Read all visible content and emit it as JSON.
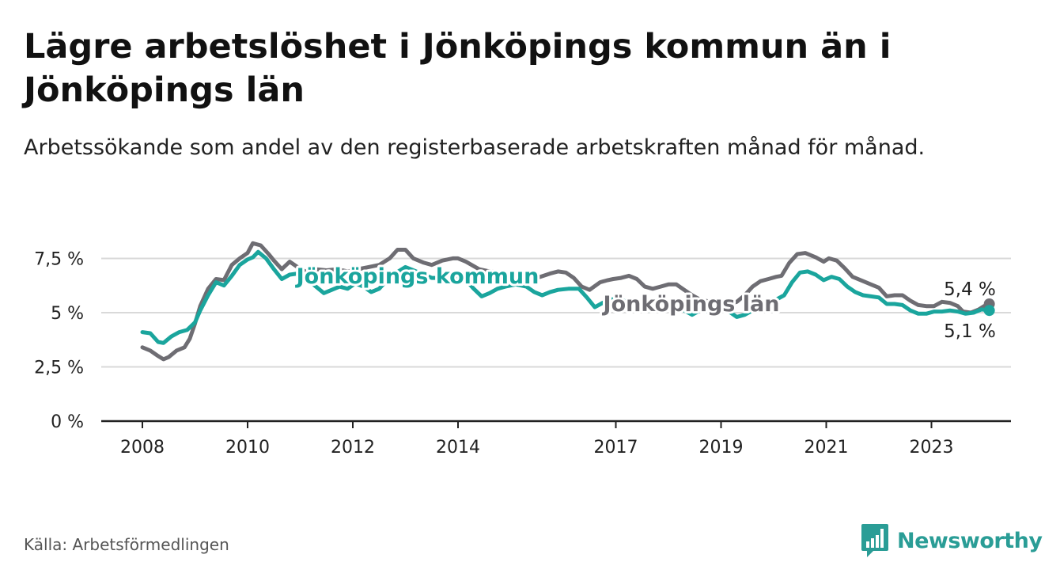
{
  "title": "Lägre arbetslöshet i Jönköpings kommun än i Jönköpings län",
  "subtitle": "Arbetssökande som andel av den registerbaserade arbetskraften månad för månad.",
  "source": "Källa: Arbetsförmedlingen",
  "brand": "Newsworthy",
  "colors": {
    "kommun": "#1aa59d",
    "lan": "#6e6d73",
    "grid": "#d9d9d9",
    "axis": "#222222",
    "text": "#222222"
  },
  "chart_data": {
    "type": "line",
    "title": "Lägre arbetslöshet i Jönköpings kommun än i Jönköpings län",
    "xlabel": "",
    "ylabel": "",
    "xlim": [
      2008,
      2024.5
    ],
    "ylim": [
      0,
      8.1
    ],
    "y_ticks": [
      {
        "value": 0,
        "label": "0 %"
      },
      {
        "value": 2.5,
        "label": "2,5 %"
      },
      {
        "value": 5,
        "label": "5 %"
      },
      {
        "value": 7.5,
        "label": "7,5 %"
      }
    ],
    "x_ticks": [
      {
        "value": 2008,
        "label": "2008"
      },
      {
        "value": 2010,
        "label": "2010"
      },
      {
        "value": 2012,
        "label": "2012"
      },
      {
        "value": 2014,
        "label": "2014"
      },
      {
        "value": 2017,
        "label": "2017"
      },
      {
        "value": 2019,
        "label": "2019"
      },
      {
        "value": 2021,
        "label": "2021"
      },
      {
        "value": 2023,
        "label": "2023"
      }
    ],
    "grid": true,
    "series": [
      {
        "name": "Jönköpings län",
        "label": "Jönköpings län",
        "end_label": "5,4 %",
        "color_key": "lan",
        "points": [
          [
            2008.0,
            3.4
          ],
          [
            2008.15,
            3.25
          ],
          [
            2008.3,
            3.0
          ],
          [
            2008.4,
            2.85
          ],
          [
            2008.5,
            2.95
          ],
          [
            2008.65,
            3.25
          ],
          [
            2008.8,
            3.4
          ],
          [
            2008.9,
            3.8
          ],
          [
            2009.0,
            4.5
          ],
          [
            2009.1,
            5.3
          ],
          [
            2009.25,
            6.1
          ],
          [
            2009.4,
            6.55
          ],
          [
            2009.55,
            6.5
          ],
          [
            2009.7,
            7.2
          ],
          [
            2009.85,
            7.5
          ],
          [
            2010.0,
            7.75
          ],
          [
            2010.1,
            8.2
          ],
          [
            2010.25,
            8.1
          ],
          [
            2010.4,
            7.7
          ],
          [
            2010.5,
            7.4
          ],
          [
            2010.65,
            7.0
          ],
          [
            2010.8,
            7.35
          ],
          [
            2010.95,
            7.1
          ],
          [
            2011.1,
            6.9
          ],
          [
            2011.3,
            7.0
          ],
          [
            2011.5,
            6.95
          ],
          [
            2011.7,
            7.0
          ],
          [
            2011.9,
            6.9
          ],
          [
            2012.1,
            7.0
          ],
          [
            2012.3,
            7.1
          ],
          [
            2012.5,
            7.2
          ],
          [
            2012.7,
            7.5
          ],
          [
            2012.85,
            7.9
          ],
          [
            2013.0,
            7.9
          ],
          [
            2013.15,
            7.5
          ],
          [
            2013.35,
            7.3
          ],
          [
            2013.5,
            7.2
          ],
          [
            2013.7,
            7.4
          ],
          [
            2013.9,
            7.5
          ],
          [
            2014.0,
            7.5
          ],
          [
            2014.15,
            7.35
          ],
          [
            2014.4,
            7.0
          ],
          [
            2014.6,
            6.9
          ],
          [
            2014.9,
            6.8
          ],
          [
            2015.2,
            6.7
          ],
          [
            2015.5,
            6.6
          ],
          [
            2015.75,
            6.8
          ],
          [
            2015.9,
            6.9
          ],
          [
            2016.05,
            6.85
          ],
          [
            2016.2,
            6.6
          ],
          [
            2016.35,
            6.2
          ],
          [
            2016.5,
            6.05
          ],
          [
            2016.7,
            6.4
          ],
          [
            2016.85,
            6.5
          ],
          [
            2016.95,
            6.55
          ],
          [
            2017.1,
            6.6
          ],
          [
            2017.25,
            6.7
          ],
          [
            2017.4,
            6.55
          ],
          [
            2017.55,
            6.2
          ],
          [
            2017.7,
            6.1
          ],
          [
            2017.85,
            6.2
          ],
          [
            2018.0,
            6.3
          ],
          [
            2018.15,
            6.3
          ],
          [
            2018.3,
            6.05
          ],
          [
            2018.45,
            5.8
          ],
          [
            2018.6,
            5.6
          ],
          [
            2018.8,
            5.5
          ],
          [
            2019.0,
            5.45
          ],
          [
            2019.15,
            5.4
          ],
          [
            2019.3,
            5.5
          ],
          [
            2019.45,
            5.8
          ],
          [
            2019.6,
            6.2
          ],
          [
            2019.75,
            6.45
          ],
          [
            2019.9,
            6.55
          ],
          [
            2020.05,
            6.65
          ],
          [
            2020.15,
            6.7
          ],
          [
            2020.3,
            7.3
          ],
          [
            2020.45,
            7.7
          ],
          [
            2020.6,
            7.75
          ],
          [
            2020.8,
            7.55
          ],
          [
            2020.95,
            7.35
          ],
          [
            2021.05,
            7.5
          ],
          [
            2021.2,
            7.4
          ],
          [
            2021.35,
            7.05
          ],
          [
            2021.5,
            6.65
          ],
          [
            2021.7,
            6.45
          ],
          [
            2021.85,
            6.3
          ],
          [
            2022.0,
            6.15
          ],
          [
            2022.15,
            5.75
          ],
          [
            2022.3,
            5.8
          ],
          [
            2022.45,
            5.8
          ],
          [
            2022.6,
            5.55
          ],
          [
            2022.75,
            5.35
          ],
          [
            2022.9,
            5.3
          ],
          [
            2023.05,
            5.3
          ],
          [
            2023.2,
            5.5
          ],
          [
            2023.35,
            5.45
          ],
          [
            2023.5,
            5.3
          ],
          [
            2023.6,
            5.05
          ],
          [
            2023.75,
            5.0
          ],
          [
            2023.9,
            5.15
          ],
          [
            2024.0,
            5.3
          ],
          [
            2024.1,
            5.4
          ]
        ]
      },
      {
        "name": "Jönköpings kommun",
        "label": "Jönköpings kommun",
        "end_label": "5,1 %",
        "color_key": "kommun",
        "points": [
          [
            2008.0,
            4.1
          ],
          [
            2008.15,
            4.05
          ],
          [
            2008.3,
            3.65
          ],
          [
            2008.4,
            3.6
          ],
          [
            2008.55,
            3.9
          ],
          [
            2008.7,
            4.1
          ],
          [
            2008.85,
            4.2
          ],
          [
            2009.0,
            4.55
          ],
          [
            2009.1,
            5.1
          ],
          [
            2009.25,
            5.8
          ],
          [
            2009.4,
            6.4
          ],
          [
            2009.55,
            6.25
          ],
          [
            2009.7,
            6.7
          ],
          [
            2009.85,
            7.2
          ],
          [
            2010.0,
            7.45
          ],
          [
            2010.1,
            7.55
          ],
          [
            2010.2,
            7.8
          ],
          [
            2010.35,
            7.5
          ],
          [
            2010.5,
            7.0
          ],
          [
            2010.65,
            6.55
          ],
          [
            2010.8,
            6.75
          ],
          [
            2010.95,
            6.8
          ],
          [
            2011.1,
            6.6
          ],
          [
            2011.3,
            6.2
          ],
          [
            2011.45,
            5.9
          ],
          [
            2011.6,
            6.05
          ],
          [
            2011.75,
            6.2
          ],
          [
            2011.9,
            6.1
          ],
          [
            2012.05,
            6.35
          ],
          [
            2012.2,
            6.2
          ],
          [
            2012.35,
            5.95
          ],
          [
            2012.5,
            6.1
          ],
          [
            2012.65,
            6.5
          ],
          [
            2012.8,
            6.8
          ],
          [
            2013.0,
            7.1
          ],
          [
            2013.15,
            6.95
          ],
          [
            2013.3,
            6.8
          ],
          [
            2013.5,
            6.6
          ],
          [
            2013.7,
            6.6
          ],
          [
            2013.85,
            6.8
          ],
          [
            2014.0,
            6.65
          ],
          [
            2014.15,
            6.5
          ],
          [
            2014.3,
            6.1
          ],
          [
            2014.45,
            5.75
          ],
          [
            2014.6,
            5.9
          ],
          [
            2014.75,
            6.1
          ],
          [
            2014.9,
            6.2
          ],
          [
            2015.1,
            6.3
          ],
          [
            2015.3,
            6.2
          ],
          [
            2015.45,
            5.95
          ],
          [
            2015.6,
            5.8
          ],
          [
            2015.75,
            5.95
          ],
          [
            2015.9,
            6.05
          ],
          [
            2016.1,
            6.1
          ],
          [
            2016.3,
            6.1
          ],
          [
            2016.45,
            5.7
          ],
          [
            2016.6,
            5.25
          ],
          [
            2016.75,
            5.45
          ],
          [
            2016.9,
            5.6
          ],
          [
            2017.05,
            5.65
          ],
          [
            2017.2,
            5.5
          ],
          [
            2017.35,
            5.3
          ],
          [
            2017.5,
            5.2
          ],
          [
            2017.65,
            5.1
          ],
          [
            2017.85,
            5.15
          ],
          [
            2018.0,
            5.3
          ],
          [
            2018.15,
            5.2
          ],
          [
            2018.3,
            5.1
          ],
          [
            2018.45,
            4.9
          ],
          [
            2018.6,
            5.1
          ],
          [
            2018.8,
            5.05
          ],
          [
            2019.0,
            5.1
          ],
          [
            2019.15,
            5.05
          ],
          [
            2019.3,
            4.8
          ],
          [
            2019.45,
            4.9
          ],
          [
            2019.6,
            5.1
          ],
          [
            2019.75,
            5.3
          ],
          [
            2019.9,
            5.5
          ],
          [
            2020.05,
            5.6
          ],
          [
            2020.2,
            5.8
          ],
          [
            2020.35,
            6.4
          ],
          [
            2020.5,
            6.85
          ],
          [
            2020.65,
            6.9
          ],
          [
            2020.8,
            6.75
          ],
          [
            2020.95,
            6.5
          ],
          [
            2021.1,
            6.65
          ],
          [
            2021.25,
            6.55
          ],
          [
            2021.4,
            6.2
          ],
          [
            2021.55,
            5.95
          ],
          [
            2021.7,
            5.8
          ],
          [
            2021.85,
            5.75
          ],
          [
            2022.0,
            5.7
          ],
          [
            2022.15,
            5.4
          ],
          [
            2022.3,
            5.4
          ],
          [
            2022.45,
            5.35
          ],
          [
            2022.6,
            5.1
          ],
          [
            2022.75,
            4.95
          ],
          [
            2022.9,
            4.95
          ],
          [
            2023.05,
            5.05
          ],
          [
            2023.2,
            5.05
          ],
          [
            2023.35,
            5.1
          ],
          [
            2023.5,
            5.05
          ],
          [
            2023.65,
            4.95
          ],
          [
            2023.8,
            5.0
          ],
          [
            2023.95,
            5.15
          ],
          [
            2024.1,
            5.1
          ]
        ]
      }
    ]
  }
}
